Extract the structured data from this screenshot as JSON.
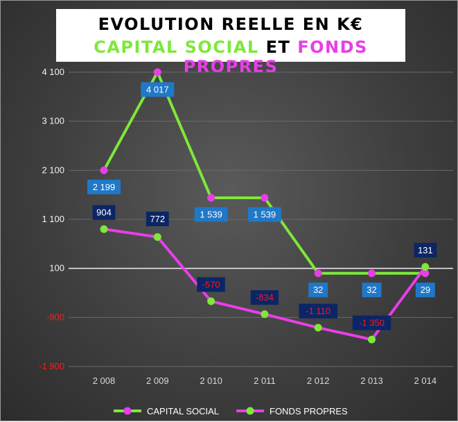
{
  "title": {
    "line1": "EVOLUTION REELLE EN K€",
    "line2_part1": "CAPITAL SOCIAL",
    "line2_part2": "ET",
    "line2_part3": "FONDS PROPRES"
  },
  "colors": {
    "capital_line": "#7ee83a",
    "capital_marker": "#e83ee8",
    "fonds_line": "#e83ee8",
    "fonds_marker": "#7ee83a",
    "label_box_capital": "#1f78c8",
    "label_box_fonds": "#0b2566",
    "negative_label_text": "#ff1a1a",
    "background": "#444444"
  },
  "chart_data": {
    "type": "line",
    "title": "EVOLUTION REELLE EN K€ CAPITAL SOCIAL ET FONDS PROPRES",
    "categories": [
      "2 008",
      "2 009",
      "2 010",
      "2 011",
      "2 012",
      "2 013",
      "2 014"
    ],
    "y_ticks": [
      4100,
      3100,
      2100,
      1100,
      100,
      -900,
      -1900
    ],
    "y_tick_labels": [
      "4 100",
      "3 100",
      "2 100",
      "1 100",
      "100",
      "-900",
      "-1 900"
    ],
    "ylim": [
      -1900,
      4100
    ],
    "baseline": 100,
    "grid": true,
    "legend_position": "bottom",
    "series": [
      {
        "name": "CAPITAL SOCIAL",
        "values": [
          2199,
          4017,
          1539,
          1539,
          32,
          32,
          29
        ],
        "point_positions": [
          2100,
          4100,
          1539,
          1539,
          0,
          0,
          0
        ],
        "labels": [
          "2 199",
          "4 017",
          "1 539",
          "1 539",
          "32",
          "32",
          "29"
        ]
      },
      {
        "name": "FONDS PROPRES",
        "values": [
          904,
          772,
          -570,
          -834,
          -1110,
          -1350,
          131
        ],
        "point_positions": [
          900,
          740,
          -570,
          -834,
          -1110,
          -1350,
          131
        ],
        "labels": [
          "904",
          "772",
          "-570",
          "-834",
          "-1 110",
          "-1 350",
          "131"
        ]
      }
    ]
  }
}
